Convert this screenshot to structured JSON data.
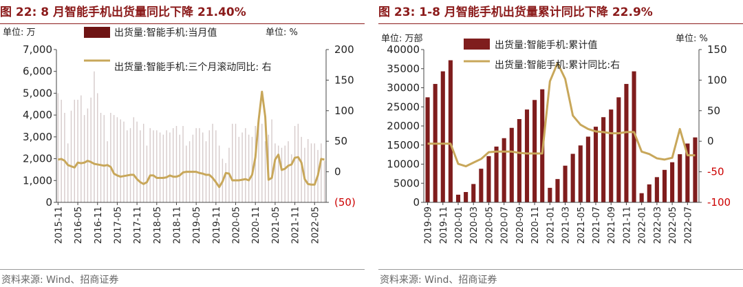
{
  "chart_data": [
    {
      "type": "bar+line",
      "title": "图 22:  8 月智能手机出货量同比下降 21.40%",
      "unit_left": "单位:  万",
      "unit_right": "单位:  %",
      "left_axis": {
        "min": 0,
        "max": 7000,
        "ticks": [
          0,
          1000,
          2000,
          3000,
          4000,
          5000,
          6000,
          7000
        ],
        "tick_labels": [
          "0",
          "1,000",
          "2,000",
          "3,000",
          "4,000",
          "5,000",
          "6,000",
          "7,000"
        ]
      },
      "right_axis": {
        "min": -50,
        "max": 200,
        "ticks": [
          -50,
          0,
          50,
          100,
          150,
          200
        ],
        "tick_labels": [
          "(50)",
          "0",
          "50",
          "100",
          "150",
          "200"
        ]
      },
      "x_tick_labels": [
        "2015-11",
        "2016-05",
        "2016-11",
        "2017-05",
        "2017-11",
        "2018-05",
        "2018-11",
        "2019-05",
        "2019-11",
        "2020-05",
        "2020-11",
        "2021-05",
        "2021-11",
        "2022-05"
      ],
      "grid": false,
      "legend": [
        {
          "name": "出货量:智能手机:当月值",
          "type": "bar"
        },
        {
          "name": "出货量:智能手机:三个月滚动同比:  右",
          "type": "line"
        }
      ],
      "x": [
        "2015-11",
        "2015-12",
        "2016-01",
        "2016-02",
        "2016-03",
        "2016-04",
        "2016-05",
        "2016-06",
        "2016-07",
        "2016-08",
        "2016-09",
        "2016-10",
        "2016-11",
        "2016-12",
        "2017-01",
        "2017-02",
        "2017-03",
        "2017-04",
        "2017-05",
        "2017-06",
        "2017-07",
        "2017-08",
        "2017-09",
        "2017-10",
        "2017-11",
        "2017-12",
        "2018-01",
        "2018-02",
        "2018-03",
        "2018-04",
        "2018-05",
        "2018-06",
        "2018-07",
        "2018-08",
        "2018-09",
        "2018-10",
        "2018-11",
        "2018-12",
        "2019-01",
        "2019-02",
        "2019-03",
        "2019-04",
        "2019-05",
        "2019-06",
        "2019-07",
        "2019-08",
        "2019-09",
        "2019-10",
        "2019-11",
        "2019-12",
        "2020-01",
        "2020-02",
        "2020-03",
        "2020-04",
        "2020-05",
        "2020-06",
        "2020-07",
        "2020-08",
        "2020-09",
        "2020-10",
        "2020-11",
        "2020-12",
        "2021-01",
        "2021-02",
        "2021-03",
        "2021-04",
        "2021-05",
        "2021-06",
        "2021-07",
        "2021-08",
        "2021-09",
        "2021-10",
        "2021-11",
        "2021-12",
        "2022-01",
        "2022-02",
        "2022-03",
        "2022-04",
        "2022-05",
        "2022-06",
        "2022-07",
        "2022-08"
      ],
      "series": [
        {
          "name": "出货量:智能手机:当月值",
          "type": "bar",
          "axis": "left",
          "values": [
            5000,
            4700,
            4100,
            2700,
            4200,
            4700,
            4700,
            4900,
            4000,
            4300,
            4800,
            6000,
            5000,
            4100,
            4000,
            2800,
            4100,
            4000,
            3900,
            3800,
            3700,
            3300,
            3400,
            3900,
            3700,
            3300,
            3600,
            2600,
            3400,
            3300,
            3300,
            3200,
            3100,
            3300,
            3200,
            3400,
            3500,
            3100,
            3500,
            2600,
            2800,
            3100,
            3400,
            3400,
            3200,
            2800,
            3300,
            3600,
            3300,
            2600,
            2000,
            1800,
            2500,
            3600,
            3600,
            3000,
            3200,
            3400,
            3100,
            3000,
            3500,
            3600,
            3600,
            2800,
            3100,
            3800,
            2700,
            2600,
            2500,
            2600,
            2800,
            2200,
            3500,
            3600,
            3000,
            2500,
            2900,
            2700,
            2700,
            2400,
            2700,
            1900
          ]
        },
        {
          "name": "出货量:智能手机:三个月滚动同比:  右",
          "type": "line",
          "axis": "right",
          "values": [
            20,
            21,
            18,
            11,
            9,
            7,
            15,
            14,
            15,
            18,
            16,
            13,
            12,
            11,
            10,
            11,
            8,
            -3,
            -6,
            -8,
            -7,
            -6,
            -5,
            -5,
            -12,
            -17,
            -20,
            -17,
            -6,
            -6,
            -10,
            -10,
            -10,
            -9,
            -6,
            -8,
            -8,
            -6,
            -1,
            0,
            0,
            0,
            0,
            -2,
            -3,
            -5,
            -5,
            -10,
            -17,
            -25,
            -16,
            -2,
            -3,
            -14,
            -14,
            -14,
            -13,
            -12,
            -14,
            -5,
            24,
            85,
            131,
            90,
            -13,
            -10,
            20,
            28,
            3,
            5,
            10,
            12,
            23,
            24,
            15,
            -12,
            -20,
            -21,
            -21,
            -6,
            21,
            20
          ]
        }
      ]
    },
    {
      "type": "bar+line",
      "title": "图 23:  1-8 月智能手机出货量累计同比下降 22.9%",
      "unit_left": "单位:  万部",
      "unit_right": "单位:  %",
      "left_axis": {
        "min": 0,
        "max": 40000,
        "ticks": [
          0,
          5000,
          10000,
          15000,
          20000,
          25000,
          30000,
          35000,
          40000
        ],
        "tick_labels": [
          "0",
          "5000",
          "10000",
          "15000",
          "20000",
          "25000",
          "30000",
          "35000",
          "40000"
        ]
      },
      "right_axis": {
        "min": -100,
        "max": 150,
        "ticks": [
          -100,
          -50,
          0,
          50,
          100,
          150
        ],
        "tick_labels": [
          "-100",
          "-50",
          "0",
          "50",
          "100",
          "150"
        ]
      },
      "x_tick_labels": [
        "2019-09",
        "2019-11",
        "2020-01",
        "2020-03",
        "2020-05",
        "2020-07",
        "2020-09",
        "2020-11",
        "2021-01",
        "2021-03",
        "2021-05",
        "2021-07",
        "2021-09",
        "2021-11",
        "2022-01",
        "2022-03",
        "2022-05",
        "2022-07"
      ],
      "grid": false,
      "legend": [
        {
          "name": "出货量:智能手机:累计值",
          "type": "bar"
        },
        {
          "name": "出货量:智能手机:累计同比:右",
          "type": "line"
        }
      ],
      "x": [
        "2019-09",
        "2019-10",
        "2019-11",
        "2019-12",
        "2020-01",
        "2020-02",
        "2020-03",
        "2020-04",
        "2020-05",
        "2020-06",
        "2020-07",
        "2020-08",
        "2020-09",
        "2020-10",
        "2020-11",
        "2020-12",
        "2021-01",
        "2021-02",
        "2021-03",
        "2021-04",
        "2021-05",
        "2021-06",
        "2021-07",
        "2021-08",
        "2021-09",
        "2021-10",
        "2021-11",
        "2021-12",
        "2022-01",
        "2022-02",
        "2022-03",
        "2022-04",
        "2022-05",
        "2022-06",
        "2022-07",
        "2022-08"
      ],
      "series": [
        {
          "name": "出货量:智能手机:累计值",
          "type": "bar",
          "axis": "left",
          "values": [
            27500,
            31000,
            34300,
            37200,
            2000,
            2700,
            4800,
            8800,
            12100,
            14600,
            16800,
            19500,
            21800,
            24300,
            26800,
            29600,
            3800,
            6100,
            9600,
            12700,
            14900,
            17200,
            19800,
            22300,
            24300,
            27500,
            31000,
            34300,
            2400,
            4700,
            6600,
            8500,
            10500,
            12600,
            15400,
            17000
          ]
        },
        {
          "name": "出货量:智能手机:累计同比:右",
          "type": "line",
          "axis": "right",
          "values": [
            -4,
            -4,
            -4,
            -4,
            -37,
            -41,
            -35,
            -29,
            -18,
            -17,
            -17,
            -17,
            -19,
            -20,
            -20,
            -20,
            98,
            128,
            102,
            42,
            27,
            20,
            16,
            15,
            13,
            13,
            15,
            15,
            -17,
            -21,
            -28,
            -30,
            -27,
            20,
            -23,
            -23
          ]
        }
      ]
    }
  ],
  "source": "资料来源:  Wind、招商证券",
  "colors": {
    "bar_left": "#d6cbcb",
    "bar_right": "#7f1d1d",
    "line": "#c8a75a",
    "title": "#8b1a1a",
    "negative_tick": "#cc0000"
  }
}
